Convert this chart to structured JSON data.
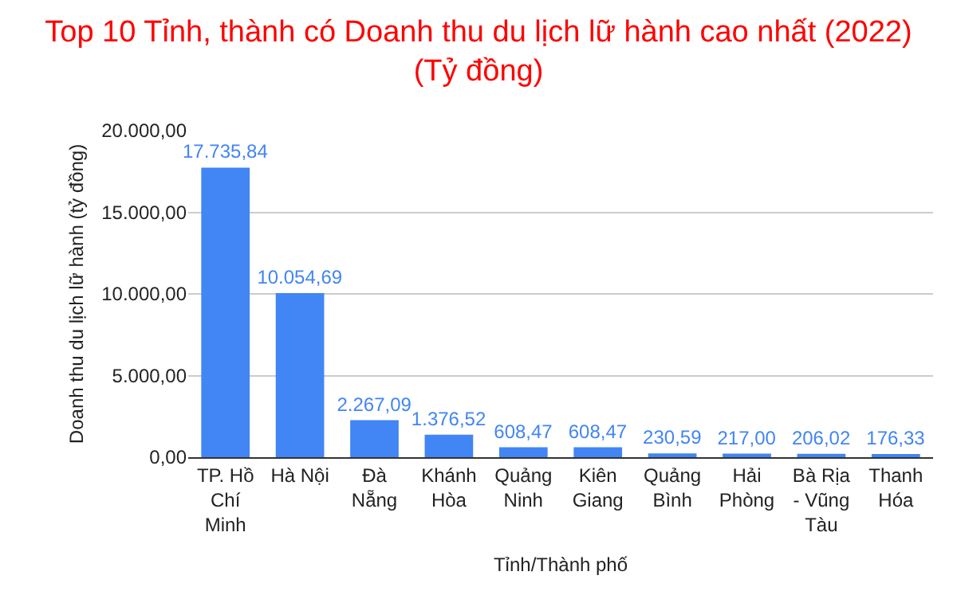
{
  "chart_data": {
    "type": "bar",
    "title": "Top 10 Tỉnh, thành có Doanh thu du lịch lữ hành cao nhất (2022)\n(Tỷ đồng)",
    "xlabel": "Tỉnh/Thành phố",
    "ylabel": "Doanh thu du lịch lữ hành (tỷ đồng)",
    "categories": [
      "TP. Hồ Chí Minh",
      "Hà Nội",
      "Đà Nẵng",
      "Khánh Hòa",
      "Quảng Ninh",
      "Kiên Giang",
      "Quảng Bình",
      "Hải Phòng",
      "Bà Rịa - Vũng Tàu",
      "Thanh Hóa"
    ],
    "values": [
      17735.84,
      10054.69,
      2267.09,
      1376.52,
      608.47,
      608.47,
      230.59,
      217.0,
      206.02,
      176.33
    ],
    "value_labels": [
      "17.735,84",
      "10.054,69",
      "2.267,09",
      "1.376,52",
      "608,47",
      "608,47",
      "230,59",
      "217,00",
      "206,02",
      "176,33"
    ],
    "color": "#4285f4",
    "ylim": [
      0,
      20000
    ],
    "yticks": [
      {
        "value": 0,
        "label": "0,00"
      },
      {
        "value": 5000,
        "label": "5.000,00"
      },
      {
        "value": 10000,
        "label": "10.000,00"
      },
      {
        "value": 15000,
        "label": "15.000,00"
      },
      {
        "value": 20000,
        "label": "20.000,00"
      }
    ],
    "grid": "y"
  }
}
